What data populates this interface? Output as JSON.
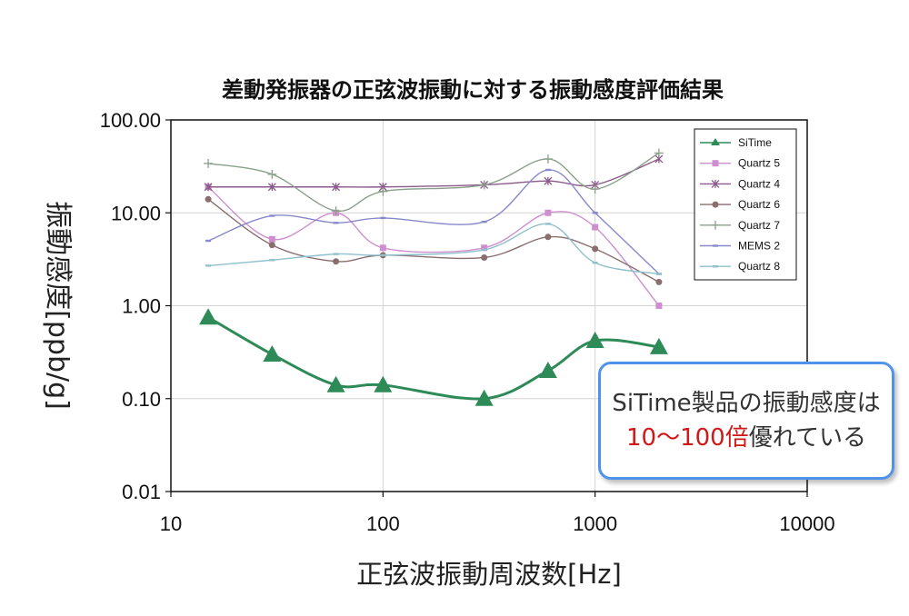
{
  "chart_data": {
    "type": "line",
    "title": "差動発振器の正弦波振動に対する振動感度評価結果",
    "xlabel": "正弦波振動周波数[Hz]",
    "ylabel": "振動感度[ppb/g]",
    "x_scale": "log",
    "y_scale": "log",
    "xlim": [
      10,
      10000
    ],
    "ylim": [
      0.01,
      100
    ],
    "x_ticks": [
      "10",
      "100",
      "1000",
      "10000"
    ],
    "y_ticks": [
      "0.01",
      "0.10",
      "1.00",
      "10.00",
      "100.00"
    ],
    "grid": true,
    "legend_position": "top-right",
    "series": [
      {
        "name": "SiTime",
        "color": "#2e8b57",
        "marker": "triangle",
        "x": [
          15,
          30,
          60,
          100,
          300,
          600,
          1000,
          2000
        ],
        "y": [
          0.75,
          0.3,
          0.14,
          0.14,
          0.1,
          0.2,
          0.42,
          0.36
        ]
      },
      {
        "name": "Quartz 5",
        "color": "#cf8fcf",
        "marker": "square",
        "x": [
          15,
          30,
          60,
          100,
          300,
          600,
          1000,
          2000
        ],
        "y": [
          19,
          5.2,
          10,
          4.2,
          4.2,
          10,
          7,
          1.0
        ]
      },
      {
        "name": "Quartz 4",
        "color": "#8a5a8a",
        "marker": "asterisk",
        "x": [
          15,
          30,
          60,
          100,
          300,
          600,
          1000,
          2000
        ],
        "y": [
          19,
          19,
          19,
          19,
          20,
          22,
          20,
          38
        ]
      },
      {
        "name": "Quartz 6",
        "color": "#8a6e6e",
        "marker": "circle",
        "x": [
          15,
          30,
          60,
          100,
          300,
          600,
          1000,
          2000
        ],
        "y": [
          14,
          4.5,
          3.0,
          3.5,
          3.3,
          5.5,
          4.1,
          1.8
        ]
      },
      {
        "name": "Quartz 7",
        "color": "#8aa08a",
        "marker": "plus",
        "x": [
          15,
          30,
          60,
          100,
          300,
          600,
          1000,
          2000
        ],
        "y": [
          34,
          26,
          10.5,
          17,
          20,
          38,
          18,
          44
        ]
      },
      {
        "name": "MEMS 2",
        "color": "#8888cc",
        "marker": "dash",
        "x": [
          15,
          30,
          60,
          100,
          300,
          600,
          1000,
          2000
        ],
        "y": [
          5,
          9.3,
          7.8,
          8.8,
          8,
          29,
          10,
          2.2
        ]
      },
      {
        "name": "Quartz 8",
        "color": "#8fc0cc",
        "marker": "dash",
        "x": [
          15,
          30,
          60,
          100,
          300,
          600,
          1000,
          2000
        ],
        "y": [
          2.7,
          3.1,
          3.6,
          3.5,
          4.0,
          7.6,
          2.9,
          2.2
        ]
      }
    ],
    "annotation": {
      "line1": "SiTime製品の振動感度は",
      "line2_highlight": "10〜100倍",
      "line2_rest": "優れている"
    }
  }
}
